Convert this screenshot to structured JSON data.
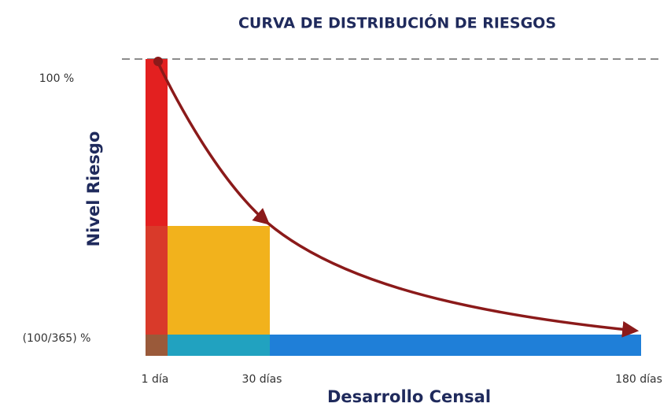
{
  "title": "CURVA DE DISTRIBUCIÓN DE RIESGOS",
  "y_axis": {
    "label": "Nivel Riesgo",
    "labels": [
      "100 %",
      "(100/365) %"
    ]
  },
  "x_axis": {
    "label": "Desarrollo Censal",
    "labels": [
      "1 día",
      "30 días",
      "180 días"
    ]
  }
}
